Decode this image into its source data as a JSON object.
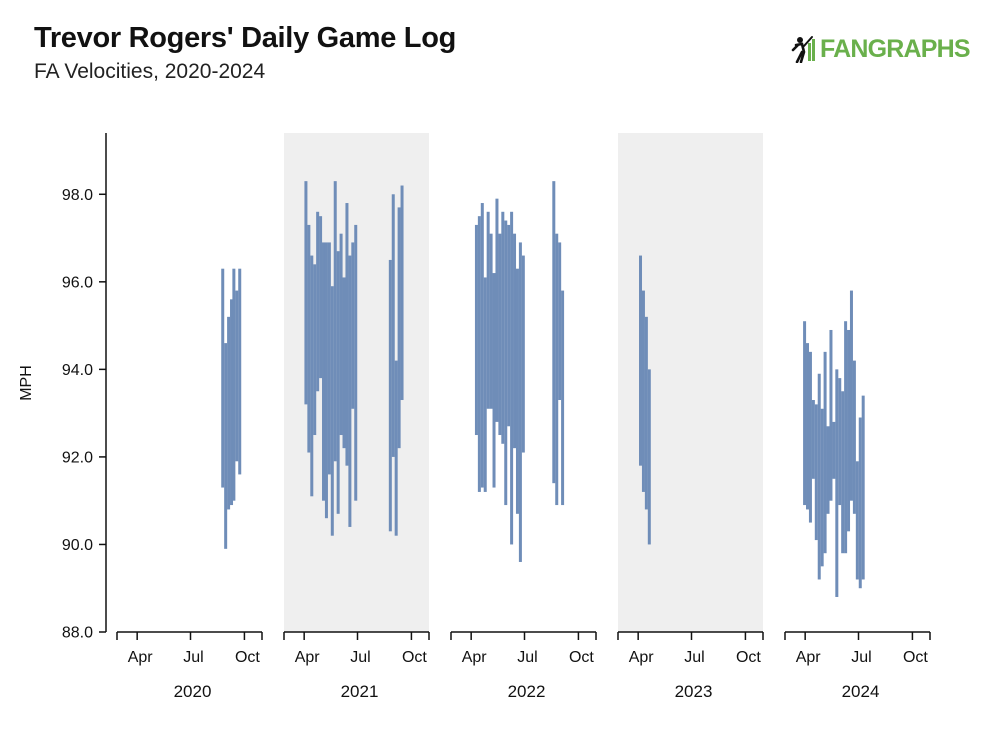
{
  "header": {
    "title": "Trevor Rogers' Daily Game Log",
    "subtitle": "FA Velocities, 2020-2024",
    "logo_text": "FANGRAPHS",
    "logo_color": "#6ab04c"
  },
  "chart_data": {
    "type": "bar",
    "ylabel": "MPH",
    "ylim": [
      88.0,
      99.4
    ],
    "yticks": [
      "88.0",
      "90.0",
      "92.0",
      "94.0",
      "96.0",
      "98.0"
    ],
    "month_ticks": [
      "Apr",
      "Jul",
      "Oct"
    ],
    "bar_color": "#6f8db8",
    "shade_color": "#efefef",
    "panels": [
      {
        "year": "2020",
        "shaded": false,
        "games": [
          {
            "date": "2020-08-25",
            "low": 91.3,
            "high": 96.3
          },
          {
            "date": "2020-08-30",
            "low": 89.9,
            "high": 94.6
          },
          {
            "date": "2020-09-04",
            "low": 90.8,
            "high": 95.2
          },
          {
            "date": "2020-09-09",
            "low": 90.9,
            "high": 95.6
          },
          {
            "date": "2020-09-13",
            "low": 91.0,
            "high": 96.3
          },
          {
            "date": "2020-09-18",
            "low": 91.9,
            "high": 95.8
          },
          {
            "date": "2020-09-23",
            "low": 91.6,
            "high": 96.3
          }
        ]
      },
      {
        "year": "2021",
        "shaded": true,
        "games": [
          {
            "date": "2021-04-04",
            "low": 93.2,
            "high": 98.3
          },
          {
            "date": "2021-04-09",
            "low": 92.1,
            "high": 97.3
          },
          {
            "date": "2021-04-14",
            "low": 91.1,
            "high": 96.6
          },
          {
            "date": "2021-04-19",
            "low": 92.5,
            "high": 96.4
          },
          {
            "date": "2021-04-24",
            "low": 93.5,
            "high": 97.6
          },
          {
            "date": "2021-04-29",
            "low": 93.8,
            "high": 97.5
          },
          {
            "date": "2021-05-04",
            "low": 91.0,
            "high": 96.9
          },
          {
            "date": "2021-05-09",
            "low": 90.6,
            "high": 96.9
          },
          {
            "date": "2021-05-14",
            "low": 91.6,
            "high": 96.9
          },
          {
            "date": "2021-05-19",
            "low": 90.2,
            "high": 95.9
          },
          {
            "date": "2021-05-24",
            "low": 91.9,
            "high": 98.3
          },
          {
            "date": "2021-05-29",
            "low": 90.7,
            "high": 96.7
          },
          {
            "date": "2021-06-03",
            "low": 92.5,
            "high": 97.1
          },
          {
            "date": "2021-06-08",
            "low": 92.2,
            "high": 96.1
          },
          {
            "date": "2021-06-13",
            "low": 91.8,
            "high": 97.8
          },
          {
            "date": "2021-06-18",
            "low": 90.4,
            "high": 96.6
          },
          {
            "date": "2021-06-23",
            "low": 93.1,
            "high": 96.9
          },
          {
            "date": "2021-06-28",
            "low": 91.0,
            "high": 97.3
          },
          {
            "date": "2021-08-26",
            "low": 90.3,
            "high": 96.5
          },
          {
            "date": "2021-08-31",
            "low": 92.0,
            "high": 98.0
          },
          {
            "date": "2021-09-05",
            "low": 90.2,
            "high": 94.2
          },
          {
            "date": "2021-09-10",
            "low": 92.2,
            "high": 97.7
          },
          {
            "date": "2021-09-15",
            "low": 93.3,
            "high": 98.2
          }
        ]
      },
      {
        "year": "2022",
        "shaded": false,
        "games": [
          {
            "date": "2022-04-10",
            "low": 92.5,
            "high": 97.3
          },
          {
            "date": "2022-04-15",
            "low": 91.2,
            "high": 97.5
          },
          {
            "date": "2022-04-20",
            "low": 91.3,
            "high": 97.8
          },
          {
            "date": "2022-04-25",
            "low": 91.2,
            "high": 96.1
          },
          {
            "date": "2022-04-30",
            "low": 93.1,
            "high": 97.6
          },
          {
            "date": "2022-05-05",
            "low": 93.1,
            "high": 97.1
          },
          {
            "date": "2022-05-10",
            "low": 91.3,
            "high": 96.2
          },
          {
            "date": "2022-05-15",
            "low": 92.8,
            "high": 97.9
          },
          {
            "date": "2022-05-20",
            "low": 92.5,
            "high": 97.1
          },
          {
            "date": "2022-05-25",
            "low": 92.3,
            "high": 97.6
          },
          {
            "date": "2022-05-30",
            "low": 90.9,
            "high": 97.4
          },
          {
            "date": "2022-06-04",
            "low": 92.7,
            "high": 97.3
          },
          {
            "date": "2022-06-09",
            "low": 90.0,
            "high": 97.6
          },
          {
            "date": "2022-06-14",
            "low": 92.2,
            "high": 97.1
          },
          {
            "date": "2022-06-19",
            "low": 90.7,
            "high": 96.3
          },
          {
            "date": "2022-06-24",
            "low": 89.6,
            "high": 96.9
          },
          {
            "date": "2022-06-29",
            "low": 92.1,
            "high": 96.6
          },
          {
            "date": "2022-08-20",
            "low": 91.4,
            "high": 98.3
          },
          {
            "date": "2022-08-25",
            "low": 90.9,
            "high": 97.1
          },
          {
            "date": "2022-08-30",
            "low": 93.3,
            "high": 96.9
          },
          {
            "date": "2022-09-04",
            "low": 90.9,
            "high": 95.8
          }
        ]
      },
      {
        "year": "2023",
        "shaded": true,
        "games": [
          {
            "date": "2023-04-05",
            "low": 91.8,
            "high": 96.6
          },
          {
            "date": "2023-04-10",
            "low": 91.2,
            "high": 95.8
          },
          {
            "date": "2023-04-15",
            "low": 90.8,
            "high": 95.2
          },
          {
            "date": "2023-04-20",
            "low": 90.0,
            "high": 94.0
          }
        ]
      },
      {
        "year": "2024",
        "shaded": false,
        "games": [
          {
            "date": "2024-03-31",
            "low": 90.9,
            "high": 95.1
          },
          {
            "date": "2024-04-05",
            "low": 90.8,
            "high": 94.6
          },
          {
            "date": "2024-04-10",
            "low": 90.5,
            "high": 94.4
          },
          {
            "date": "2024-04-15",
            "low": 91.5,
            "high": 93.3
          },
          {
            "date": "2024-04-20",
            "low": 90.1,
            "high": 93.2
          },
          {
            "date": "2024-04-25",
            "low": 89.2,
            "high": 93.9
          },
          {
            "date": "2024-04-30",
            "low": 89.5,
            "high": 93.1
          },
          {
            "date": "2024-05-05",
            "low": 89.8,
            "high": 94.4
          },
          {
            "date": "2024-05-10",
            "low": 90.7,
            "high": 92.7
          },
          {
            "date": "2024-05-15",
            "low": 91.0,
            "high": 94.9
          },
          {
            "date": "2024-05-20",
            "low": 91.5,
            "high": 92.8
          },
          {
            "date": "2024-05-25",
            "low": 88.8,
            "high": 94.0
          },
          {
            "date": "2024-05-30",
            "low": 90.9,
            "high": 93.8
          },
          {
            "date": "2024-06-04",
            "low": 89.8,
            "high": 93.5
          },
          {
            "date": "2024-06-09",
            "low": 89.8,
            "high": 95.1
          },
          {
            "date": "2024-06-14",
            "low": 90.3,
            "high": 94.9
          },
          {
            "date": "2024-06-19",
            "low": 91.0,
            "high": 95.8
          },
          {
            "date": "2024-06-24",
            "low": 90.7,
            "high": 94.2
          },
          {
            "date": "2024-06-29",
            "low": 89.2,
            "high": 91.9
          },
          {
            "date": "2024-07-04",
            "low": 89.0,
            "high": 92.9
          },
          {
            "date": "2024-07-09",
            "low": 89.2,
            "high": 93.4
          }
        ]
      }
    ]
  }
}
